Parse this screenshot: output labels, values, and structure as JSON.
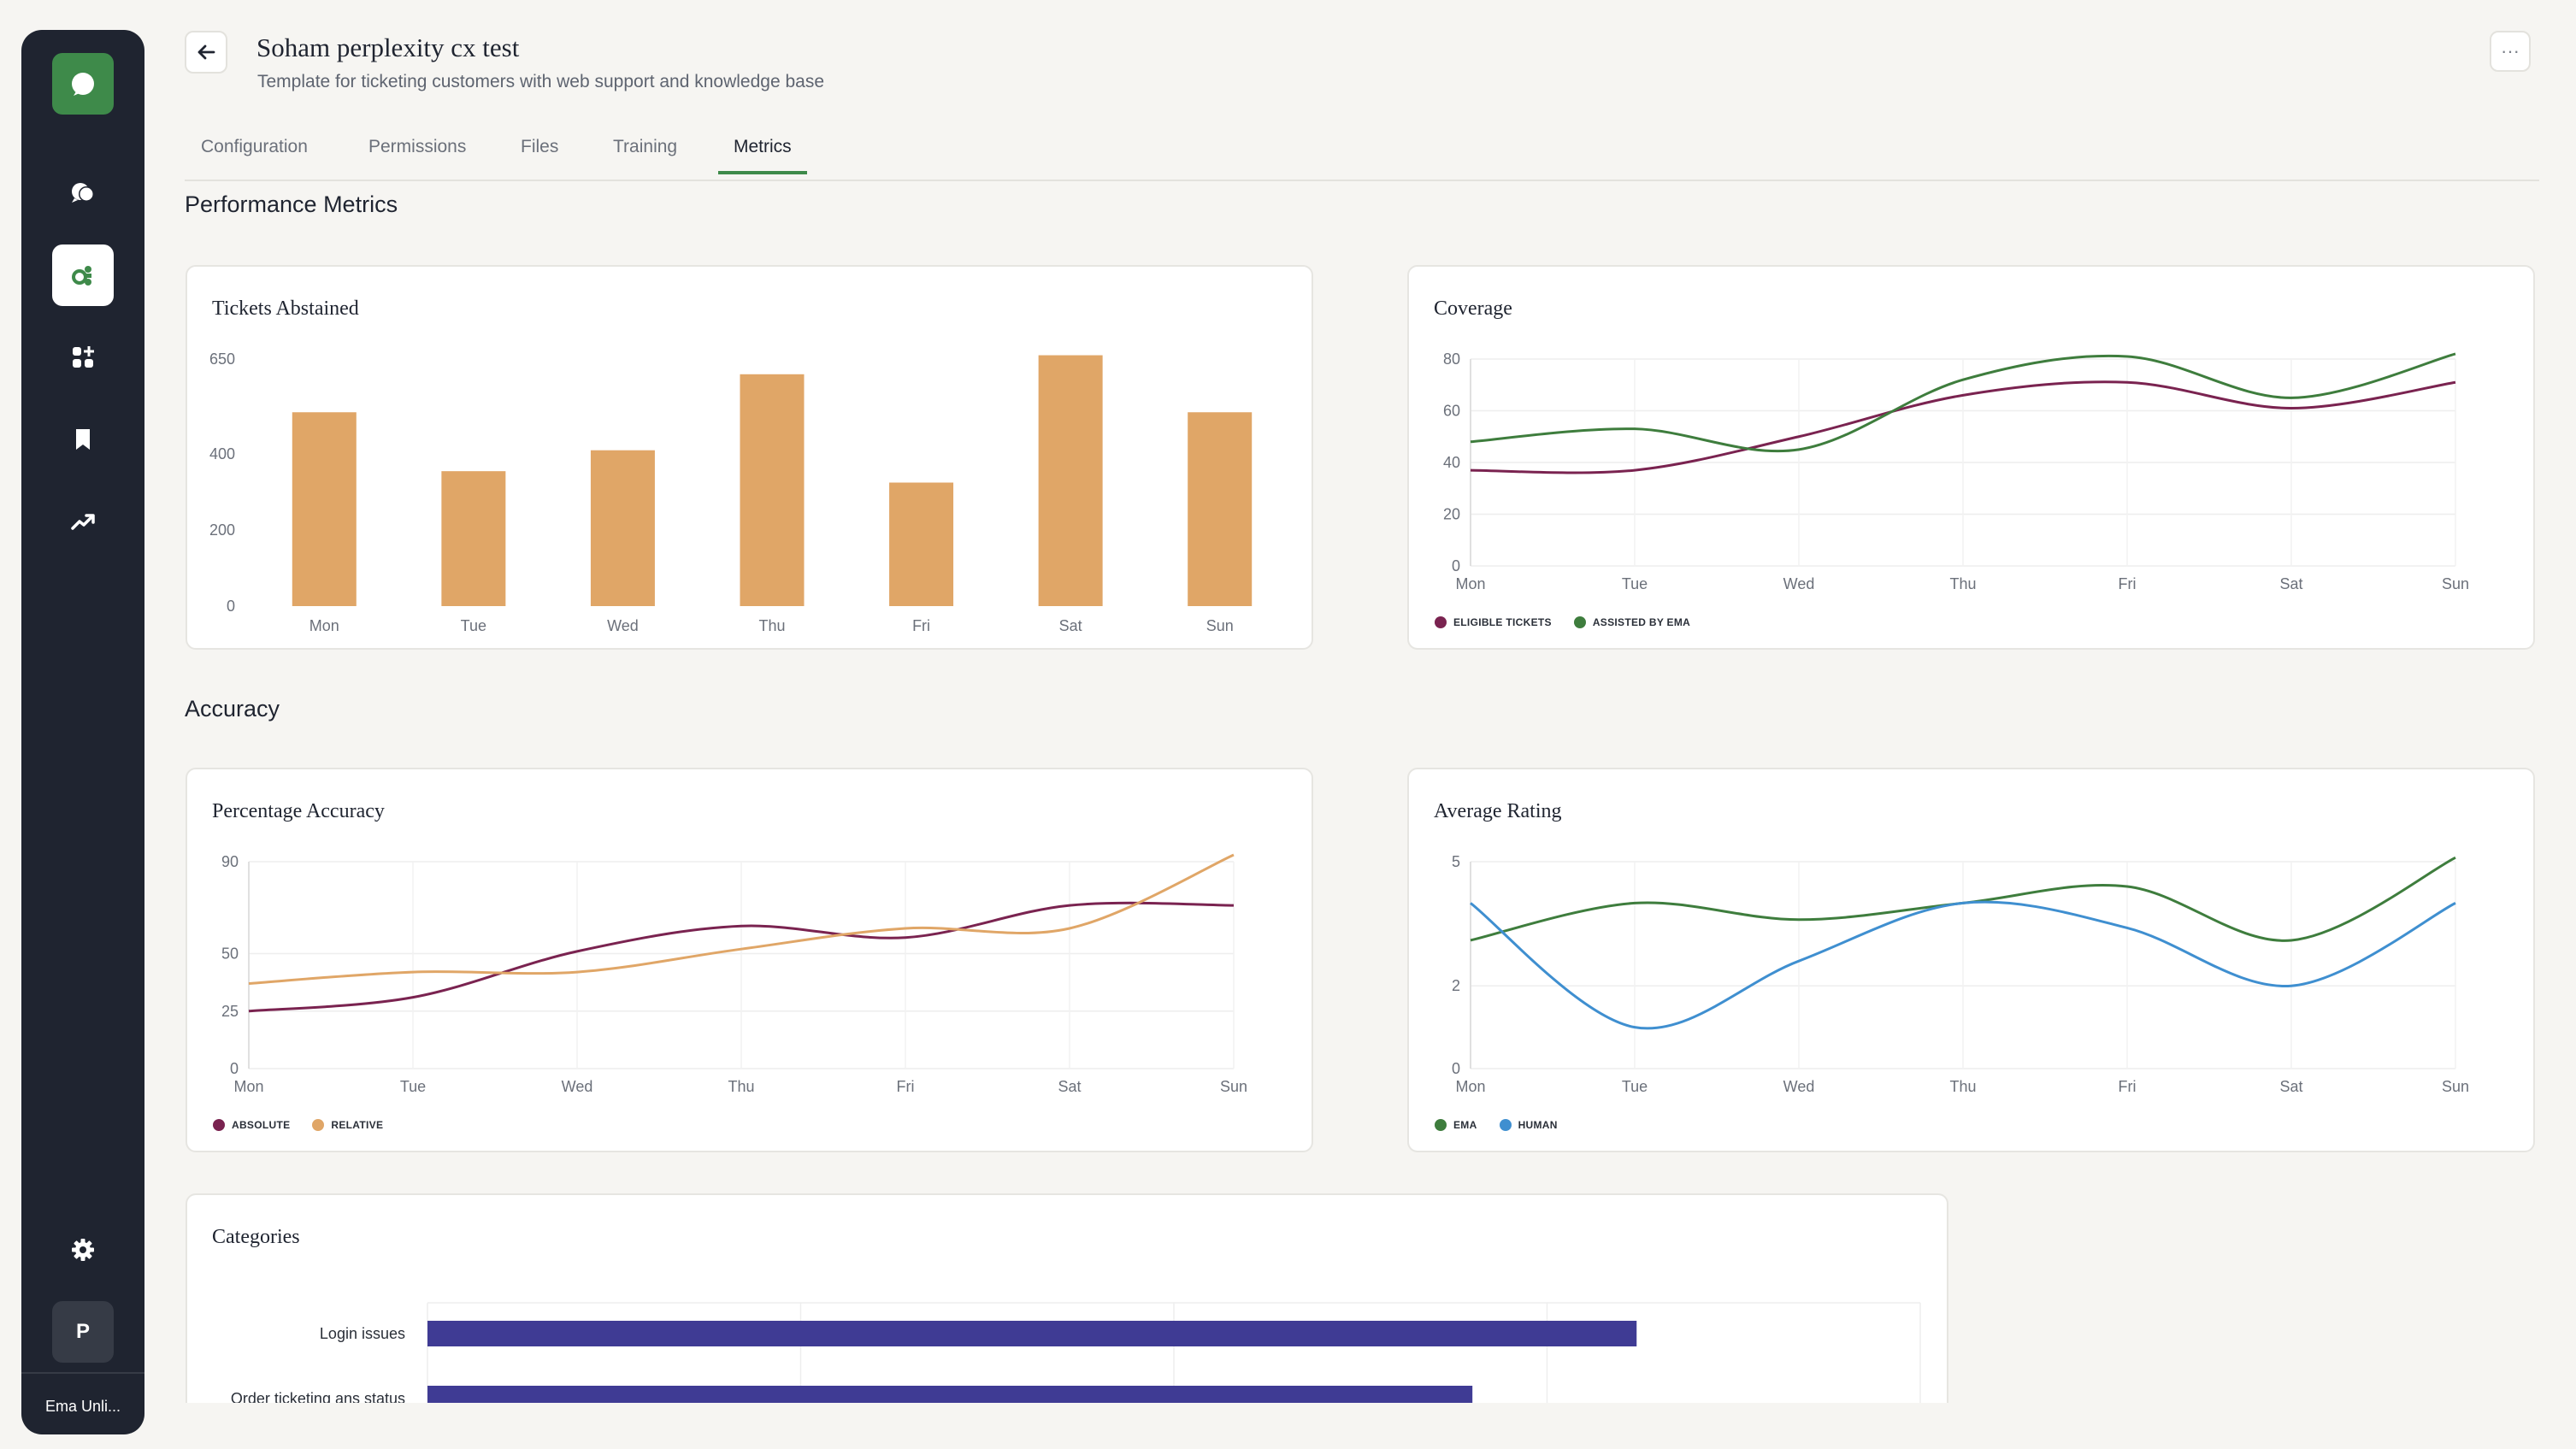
{
  "sidebar": {
    "items": [
      {
        "icon": "chat-bubbles-icon"
      },
      {
        "icon": "agent-settings-icon"
      },
      {
        "icon": "apps-add-icon"
      },
      {
        "icon": "bookmark-icon"
      },
      {
        "icon": "trending-up-icon"
      }
    ],
    "settings_icon": "gear-icon",
    "avatar_initial": "P",
    "workspace": "Ema Unli..."
  },
  "header": {
    "title": "Soham perplexity cx test",
    "subtitle": "Template for ticketing customers with web support and knowledge base"
  },
  "tabs": [
    {
      "label": "Configuration",
      "active": false
    },
    {
      "label": "Permissions",
      "active": false
    },
    {
      "label": "Files",
      "active": false
    },
    {
      "label": "Training",
      "active": false
    },
    {
      "label": "Metrics",
      "active": true
    }
  ],
  "sections": {
    "performance": "Performance Metrics",
    "accuracy": "Accuracy"
  },
  "colors": {
    "accent": "#3e8a4a",
    "bar": "#e0a667",
    "purple": "#7a2350",
    "green": "#3e7d3d",
    "orange": "#e0a667",
    "blue": "#3f8fd0",
    "category_bar": "#3f3b94"
  },
  "chart_data": [
    {
      "id": "tickets",
      "type": "bar",
      "title": "Tickets Abstained",
      "categories": [
        "Mon",
        "Tue",
        "Wed",
        "Thu",
        "Fri",
        "Sat",
        "Sun"
      ],
      "values": [
        510,
        355,
        410,
        610,
        325,
        660,
        510
      ],
      "y_ticks": [
        "650",
        "400",
        "200",
        "0"
      ],
      "ylim": [
        0,
        650
      ]
    },
    {
      "id": "coverage",
      "type": "line",
      "title": "Coverage",
      "categories": [
        "Mon",
        "Tue",
        "Wed",
        "Thu",
        "Fri",
        "Sat",
        "Sun"
      ],
      "y_ticks": [
        "80",
        "60",
        "40",
        "20",
        "0"
      ],
      "ylim": [
        0,
        80
      ],
      "series": [
        {
          "name": "ELIGIBLE TICKETS",
          "color": "#7a2350",
          "values": [
            37,
            37,
            50,
            66,
            71,
            61,
            71
          ]
        },
        {
          "name": "ASSISTED BY EMA",
          "color": "#3e7d3d",
          "values": [
            48,
            53,
            45,
            72,
            81,
            65,
            82
          ]
        }
      ]
    },
    {
      "id": "accuracy",
      "type": "line",
      "title": "Percentage Accuracy",
      "categories": [
        "Mon",
        "Tue",
        "Wed",
        "Thu",
        "Fri",
        "Sat",
        "Sun"
      ],
      "y_ticks": [
        "90",
        "50",
        "25",
        "0"
      ],
      "ylim": [
        0,
        90
      ],
      "series": [
        {
          "name": "ABSOLUTE",
          "color": "#7a2350",
          "values": [
            25,
            31,
            51,
            62,
            57,
            71,
            71
          ]
        },
        {
          "name": "RELATIVE",
          "color": "#e0a667",
          "values": [
            37,
            42,
            42,
            52,
            61,
            61,
            93
          ]
        }
      ]
    },
    {
      "id": "rating",
      "type": "line",
      "title": "Average Rating",
      "categories": [
        "Mon",
        "Tue",
        "Wed",
        "Thu",
        "Fri",
        "Sat",
        "Sun"
      ],
      "y_ticks": [
        "5",
        "2",
        "0"
      ],
      "ylim": [
        0,
        5
      ],
      "series": [
        {
          "name": "EMA",
          "color": "#3e7d3d",
          "values": [
            3.1,
            4.0,
            3.6,
            4.0,
            4.4,
            3.1,
            5.1
          ]
        },
        {
          "name": "HUMAN",
          "color": "#3f8fd0",
          "values": [
            4.0,
            1.0,
            2.6,
            4.0,
            3.4,
            2.0,
            4.0
          ]
        }
      ]
    },
    {
      "id": "categories",
      "type": "bar",
      "orientation": "horizontal",
      "title": "Categories",
      "categories": [
        "Login issues",
        "Order ticketing ans status"
      ],
      "values": [
        0.81,
        0.7
      ]
    }
  ]
}
